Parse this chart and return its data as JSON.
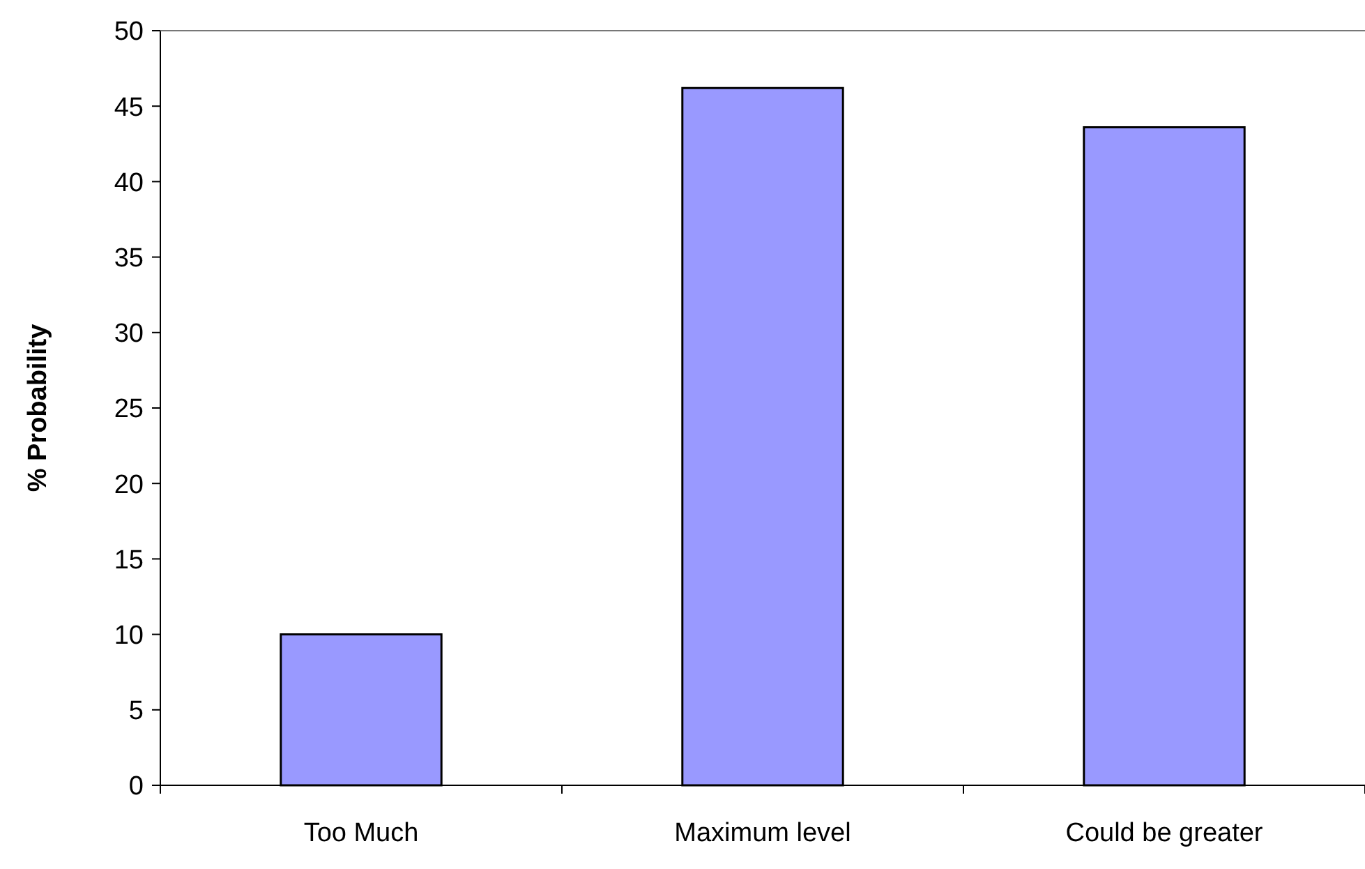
{
  "chart_data": {
    "type": "bar",
    "ylabel": "% Probability",
    "categories": [
      "Too Much",
      "Maximum level",
      "Could be greater"
    ],
    "values": [
      10,
      46.2,
      43.6
    ],
    "color": "#9999ff",
    "ylim": [
      0,
      50
    ],
    "yticks": [
      0,
      5,
      10,
      15,
      20,
      25,
      30,
      35,
      40,
      45,
      50
    ],
    "grid": false
  }
}
